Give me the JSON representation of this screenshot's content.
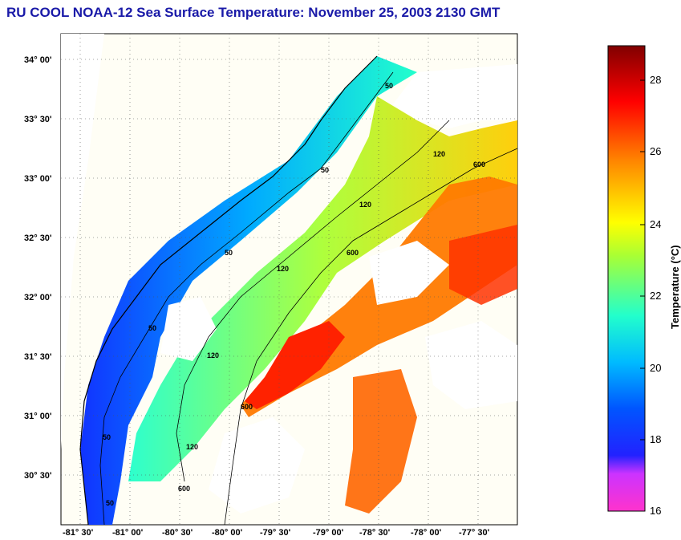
{
  "title": "RU COOL  NOAA-12  Sea Surface Temperature:  November 25, 2003 2130 GMT",
  "map": {
    "lat_ticks": [
      "34° 00'",
      "33° 30'",
      "33° 00'",
      "32° 30'",
      "32° 00'",
      "31° 30'",
      "31° 00'",
      "30° 30'"
    ],
    "lon_ticks": [
      "-81° 30'",
      "-81° 00'",
      "-80° 30'",
      "-80° 00'",
      "-79° 30'",
      "-79° 00'",
      "-78° 30'",
      "-78° 00'",
      "-77° 30'"
    ],
    "isobath_labels": [
      "50",
      "50",
      "120",
      "600",
      "120",
      "600",
      "50",
      "120",
      "600",
      "50",
      "120",
      "50",
      "120",
      "600",
      "50"
    ]
  },
  "colorbar": {
    "label": "Temperature (°C)",
    "ticks": [
      "28",
      "26",
      "24",
      "22",
      "20",
      "18",
      "16"
    ],
    "min": 16,
    "max": 29,
    "colors": [
      "#ff33cc",
      "#cc33ff",
      "#0000ff",
      "#00aaff",
      "#22ffcc",
      "#aaff33",
      "#ffff00",
      "#ff8800",
      "#ff0000",
      "#800000"
    ]
  }
}
